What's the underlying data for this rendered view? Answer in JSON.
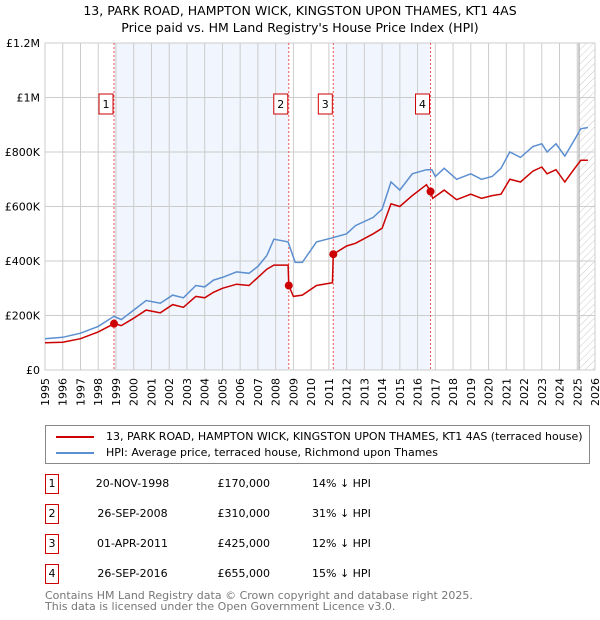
{
  "chart_data": {
    "type": "line",
    "title": "13, PARK ROAD, HAMPTON WICK, KINGSTON UPON THAMES, KT1 4AS",
    "subtitle": "Price paid vs. HM Land Registry's House Price Index (HPI)",
    "xlim": [
      1995,
      2026
    ],
    "ylim": [
      0,
      1200000
    ],
    "grid": true,
    "x_ticks": [
      "1995",
      "1996",
      "1997",
      "1998",
      "1999",
      "2000",
      "2001",
      "2002",
      "2003",
      "2004",
      "2005",
      "2006",
      "2007",
      "2008",
      "2009",
      "2010",
      "2011",
      "2012",
      "2013",
      "2014",
      "2015",
      "2016",
      "2017",
      "2018",
      "2019",
      "2020",
      "2021",
      "2022",
      "2023",
      "2024",
      "2025",
      "2026"
    ],
    "y_ticks": [
      {
        "v": 0,
        "label": "£0"
      },
      {
        "v": 200000,
        "label": "£200K"
      },
      {
        "v": 400000,
        "label": "£400K"
      },
      {
        "v": 600000,
        "label": "£600K"
      },
      {
        "v": 800000,
        "label": "£800K"
      },
      {
        "v": 1000000,
        "label": "£1M"
      },
      {
        "v": 1200000,
        "label": "£1.2M"
      }
    ],
    "series": [
      {
        "name": "13, PARK ROAD, HAMPTON WICK, KINGSTON UPON THAMES, KT1 4AS (terraced house)",
        "color": "#cc0000",
        "x": [
          1995,
          1996,
          1997,
          1998,
          1998.89,
          1999.3,
          2000,
          2000.7,
          2001.5,
          2002.2,
          2002.8,
          2003.5,
          2004,
          2004.5,
          2005,
          2005.8,
          2006.5,
          2007,
          2007.5,
          2007.9,
          2008.7,
          2008.74,
          2009,
          2009.5,
          2010.3,
          2011.2,
          2011.25,
          2012,
          2012.5,
          2013.5,
          2014,
          2014.5,
          2015,
          2015.7,
          2016.5,
          2016.73,
          2016.85,
          2017.5,
          2018.2,
          2019,
          2019.6,
          2020.2,
          2020.7,
          2021.2,
          2021.8,
          2022.5,
          2023,
          2023.3,
          2023.8,
          2024.3,
          2024.8,
          2025.2,
          2025.6
        ],
        "y": [
          100000,
          102000,
          115000,
          140000,
          170000,
          163000,
          190000,
          220000,
          210000,
          240000,
          230000,
          270000,
          265000,
          285000,
          300000,
          315000,
          310000,
          340000,
          370000,
          385000,
          385000,
          310000,
          270000,
          275000,
          310000,
          320000,
          425000,
          455000,
          465000,
          500000,
          520000,
          610000,
          600000,
          640000,
          680000,
          655000,
          630000,
          660000,
          625000,
          645000,
          630000,
          640000,
          645000,
          700000,
          690000,
          730000,
          745000,
          720000,
          735000,
          690000,
          735000,
          770000,
          770000
        ]
      },
      {
        "name": "HPI: Average price, terraced house, Richmond upon Thames",
        "color": "#5b8fd0",
        "x": [
          1995,
          1996,
          1997,
          1998,
          1998.89,
          1999.3,
          2000,
          2000.7,
          2001.5,
          2002.2,
          2002.8,
          2003.5,
          2004,
          2004.5,
          2005,
          2005.8,
          2006.5,
          2007,
          2007.5,
          2007.9,
          2008.7,
          2009.1,
          2009.5,
          2010.3,
          2011.2,
          2012,
          2012.5,
          2013.5,
          2014,
          2014.5,
          2015,
          2015.7,
          2016.5,
          2016.8,
          2017,
          2017.5,
          2018.2,
          2019,
          2019.6,
          2020.2,
          2020.7,
          2021.2,
          2021.8,
          2022.5,
          2023,
          2023.3,
          2023.8,
          2024.3,
          2024.8,
          2025.2,
          2025.6
        ],
        "y": [
          115000,
          120000,
          135000,
          160000,
          197000,
          185000,
          220000,
          255000,
          245000,
          275000,
          265000,
          310000,
          305000,
          330000,
          340000,
          360000,
          355000,
          380000,
          420000,
          480000,
          470000,
          395000,
          395000,
          470000,
          485000,
          500000,
          530000,
          560000,
          590000,
          690000,
          660000,
          720000,
          735000,
          735000,
          710000,
          740000,
          700000,
          720000,
          700000,
          710000,
          740000,
          800000,
          780000,
          820000,
          830000,
          800000,
          830000,
          785000,
          840000,
          885000,
          890000
        ]
      }
    ],
    "sales": [
      {
        "id": "1",
        "x": 1998.89,
        "y": 170000,
        "date": "20-NOV-1998",
        "price": "£170,000",
        "hpi": "14% ↓ HPI"
      },
      {
        "id": "2",
        "x": 2008.74,
        "y": 310000,
        "date": "26-SEP-2008",
        "price": "£310,000",
        "hpi": "31% ↓ HPI"
      },
      {
        "id": "3",
        "x": 2011.25,
        "y": 425000,
        "date": "01-APR-2011",
        "price": "£425,000",
        "hpi": "12% ↓ HPI"
      },
      {
        "id": "4",
        "x": 2016.73,
        "y": 655000,
        "date": "26-SEP-2016",
        "price": "£655,000",
        "hpi": "15% ↓ HPI"
      }
    ],
    "shaded_ranges": [
      [
        1998.89,
        2008.74
      ],
      [
        2011.25,
        2016.73
      ]
    ],
    "forecast_from": 2025.1
  },
  "legend": {
    "red_label": "13, PARK ROAD, HAMPTON WICK, KINGSTON UPON THAMES, KT1 4AS (terraced house)",
    "blue_label": "HPI: Average price, terraced house, Richmond upon Thames"
  },
  "footer": {
    "line1": "Contains HM Land Registry data © Crown copyright and database right 2025.",
    "line2": "This data is licensed under the Open Government Licence v3.0."
  }
}
